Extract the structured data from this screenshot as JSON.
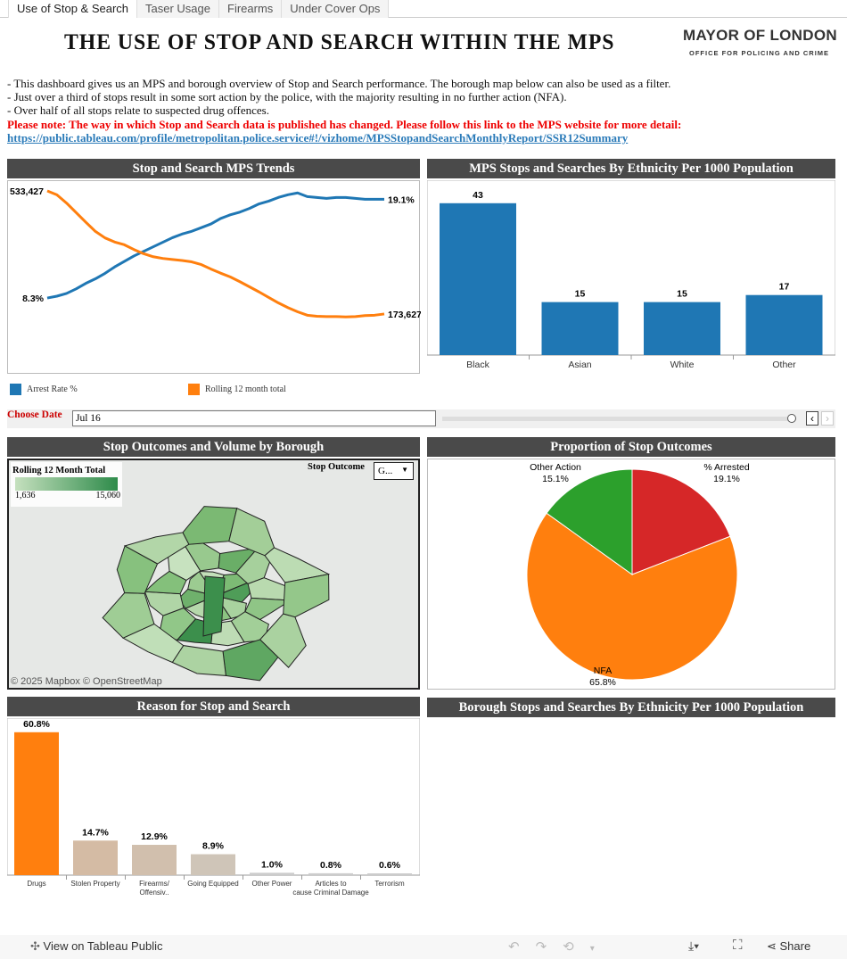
{
  "tabs": [
    "Use of Stop & Search",
    "Taser Usage",
    "Firearms",
    "Under Cover Ops"
  ],
  "header": {
    "title": "THE USE OF STOP AND SEARCH WITHIN THE MPS",
    "logo_line1": "MAYOR OF LONDON",
    "logo_line2": "OFFICE FOR POLICING AND CRIME"
  },
  "intro": {
    "lines": [
      "- This dashboard gives us an MPS and borough overview of Stop and Search performance. The borough map below can also be used as a filter.",
      "- Just over a third of stops result in some sort action by the police, with the majority resulting in no further action (NFA).",
      "- Over half of all stops relate to suspected drug offences."
    ],
    "note": "Please note: The way in which Stop and Search data is published has changed. Please follow this link to the MPS website for more detail:",
    "link": "https://public.tableau.com/profile/metropolitan.police.service#!/vizhome/MPSStopandSearchMonthlyReport/SSR12Summary"
  },
  "panels": {
    "trends": "Stop and Search MPS Trends",
    "ethnicity": "MPS Stops and Searches By Ethnicity Per 1000 Population",
    "map": "Stop Outcomes and Volume by Borough",
    "pie": "Proportion of Stop Outcomes",
    "reason": "Reason for Stop and Search",
    "borough_eth": "Borough Stops and Searches By Ethnicity Per 1000 Population"
  },
  "filter": {
    "label": "Choose Date",
    "value": "Jul 16"
  },
  "map": {
    "legend_title": "Rolling 12 Month Total",
    "legend_min": "1,636",
    "legend_max": "15,060",
    "outcome_label": "Stop Outcome",
    "outcome_value": "G...",
    "attribution": "© 2025 Mapbox  © OpenStreetMap",
    "color_low": "#c5e0be",
    "color_high": "#2e8b4a"
  },
  "footer": {
    "view_label": "View on Tableau Public",
    "share_label": "Share"
  },
  "colors": {
    "blue": "#1f77b4",
    "orange": "#ff7f0e",
    "red": "#d62728",
    "green": "#2ca02c",
    "tan": "#d4bba4"
  },
  "chart_data": [
    {
      "type": "line",
      "title": "Stop and Search MPS Trends",
      "series": [
        {
          "name": "Arrest Rate %",
          "start_label": "8.3%",
          "end_label": "19.1%",
          "ylim": [
            0.3,
            20.8
          ],
          "values": [
            8.3,
            8.5,
            8.8,
            9.3,
            9.9,
            10.4,
            11.0,
            11.7,
            12.3,
            12.9,
            13.4,
            13.9,
            14.4,
            14.9,
            15.3,
            15.6,
            16.0,
            16.4,
            17.0,
            17.4,
            17.7,
            18.1,
            18.6,
            18.9,
            19.3,
            19.6,
            19.8,
            19.4,
            19.3,
            19.2,
            19.3,
            19.3,
            19.2,
            19.1,
            19.1,
            19.1
          ]
        },
        {
          "name": "Rolling 12 month total",
          "start_label": "533,427",
          "end_label": "173,627",
          "ylim": [
            6500,
            554300
          ],
          "values": [
            533427,
            522000,
            498000,
            470000,
            442000,
            415000,
            396000,
            384000,
            376000,
            362000,
            350000,
            341000,
            336000,
            333000,
            330000,
            326000,
            318000,
            305000,
            293000,
            282000,
            268000,
            253000,
            238000,
            222000,
            206000,
            192000,
            180000,
            170000,
            167000,
            166000,
            166000,
            165000,
            166000,
            169000,
            170000,
            173627
          ]
        }
      ]
    },
    {
      "type": "bar",
      "title": "MPS Stops and Searches By Ethnicity Per 1000 Population",
      "categories": [
        "Black",
        "Asian",
        "White",
        "Other"
      ],
      "values": [
        43,
        15,
        15,
        17
      ],
      "ylim": [
        0,
        48
      ]
    },
    {
      "type": "pie",
      "title": "Proportion of Stop Outcomes",
      "slices": [
        {
          "label": "% Arrested",
          "value": 19.1,
          "display": "19.1%"
        },
        {
          "label": "NFA",
          "value": 65.8,
          "display": "65.8%"
        },
        {
          "label": "Other Action",
          "value": 15.1,
          "display": "15.1%"
        }
      ]
    },
    {
      "type": "bar",
      "title": "Reason for Stop and Search",
      "categories": [
        "Drugs",
        "Stolen Property",
        "Firearms/ Offensiv..",
        "Going Equipped",
        "Other Power",
        "Articles to cause Criminal Damage",
        "Terrorism"
      ],
      "values": [
        60.8,
        14.7,
        12.9,
        8.9,
        1.0,
        0.8,
        0.6
      ],
      "labels": [
        "60.8%",
        "14.7%",
        "12.9%",
        "8.9%",
        "1.0%",
        "0.8%",
        "0.6%"
      ],
      "ylim": [
        0,
        63
      ]
    }
  ]
}
